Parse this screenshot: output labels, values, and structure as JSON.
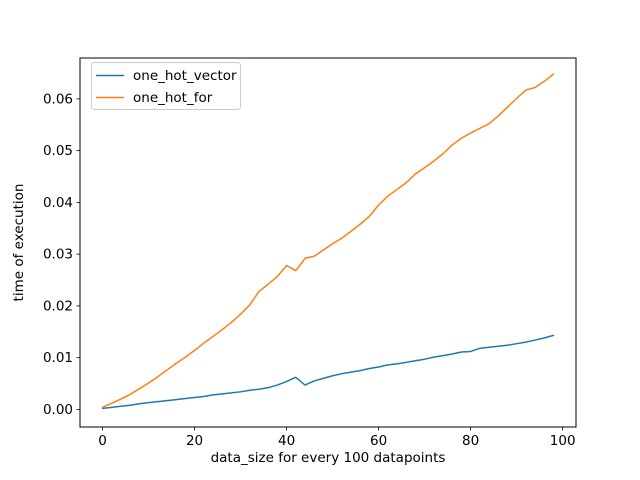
{
  "figure": {
    "background": "#ffffff",
    "spine_color": "#000000",
    "tick_color": "#000000"
  },
  "chart_data": {
    "type": "line",
    "title": "",
    "xlabel": "data_size for every 100 datapoints",
    "ylabel": "time of execution",
    "grid": false,
    "legend": {
      "position": "upper left",
      "border_color": "#cccccc",
      "background": "#ffffff"
    },
    "xlim": [
      -4.9,
      102.9
    ],
    "ylim": [
      -0.0034,
      0.0679
    ],
    "xticks": [
      0,
      20,
      40,
      60,
      80,
      100
    ],
    "xtick_labels": [
      "0",
      "20",
      "40",
      "60",
      "80",
      "100"
    ],
    "yticks": [
      0.0,
      0.01,
      0.02,
      0.03,
      0.04,
      0.05,
      0.06
    ],
    "ytick_labels": [
      "0.00",
      "0.01",
      "0.02",
      "0.03",
      "0.04",
      "0.05",
      "0.06"
    ],
    "x": [
      0,
      2,
      4,
      6,
      8,
      10,
      12,
      14,
      16,
      18,
      20,
      22,
      24,
      26,
      28,
      30,
      32,
      34,
      36,
      38,
      40,
      42,
      44,
      46,
      48,
      50,
      52,
      54,
      56,
      58,
      60,
      62,
      64,
      66,
      68,
      70,
      72,
      74,
      76,
      78,
      80,
      82,
      84,
      86,
      88,
      90,
      92,
      94,
      96,
      98
    ],
    "series": [
      {
        "name": "one_hot_vector",
        "color": "#1f77b4",
        "values": [
          0.0002,
          0.0004,
          0.0006,
          0.0008,
          0.0011,
          0.0013,
          0.0015,
          0.0017,
          0.0019,
          0.0021,
          0.0023,
          0.0025,
          0.0028,
          0.003,
          0.0032,
          0.0034,
          0.0037,
          0.0039,
          0.0042,
          0.0047,
          0.0054,
          0.0062,
          0.0047,
          0.0055,
          0.006,
          0.0065,
          0.0069,
          0.0072,
          0.0075,
          0.0079,
          0.0082,
          0.0086,
          0.0088,
          0.0091,
          0.0094,
          0.0097,
          0.0101,
          0.0104,
          0.0107,
          0.0111,
          0.0112,
          0.0118,
          0.012,
          0.0122,
          0.0124,
          0.0127,
          0.013,
          0.0134,
          0.0138,
          0.0143
        ]
      },
      {
        "name": "one_hot_for",
        "color": "#ff7f0e",
        "values": [
          0.0004,
          0.0012,
          0.002,
          0.0029,
          0.004,
          0.0051,
          0.0063,
          0.0076,
          0.0089,
          0.0101,
          0.0114,
          0.0128,
          0.0141,
          0.0154,
          0.0168,
          0.0184,
          0.0202,
          0.0228,
          0.0242,
          0.0257,
          0.0278,
          0.0268,
          0.0292,
          0.0296,
          0.0308,
          0.032,
          0.0331,
          0.0344,
          0.0358,
          0.0373,
          0.0395,
          0.0412,
          0.0425,
          0.0438,
          0.0455,
          0.0467,
          0.048,
          0.0494,
          0.0511,
          0.0524,
          0.0534,
          0.0543,
          0.0552,
          0.0567,
          0.0584,
          0.0601,
          0.0617,
          0.0622,
          0.0634,
          0.0648
        ]
      }
    ]
  }
}
